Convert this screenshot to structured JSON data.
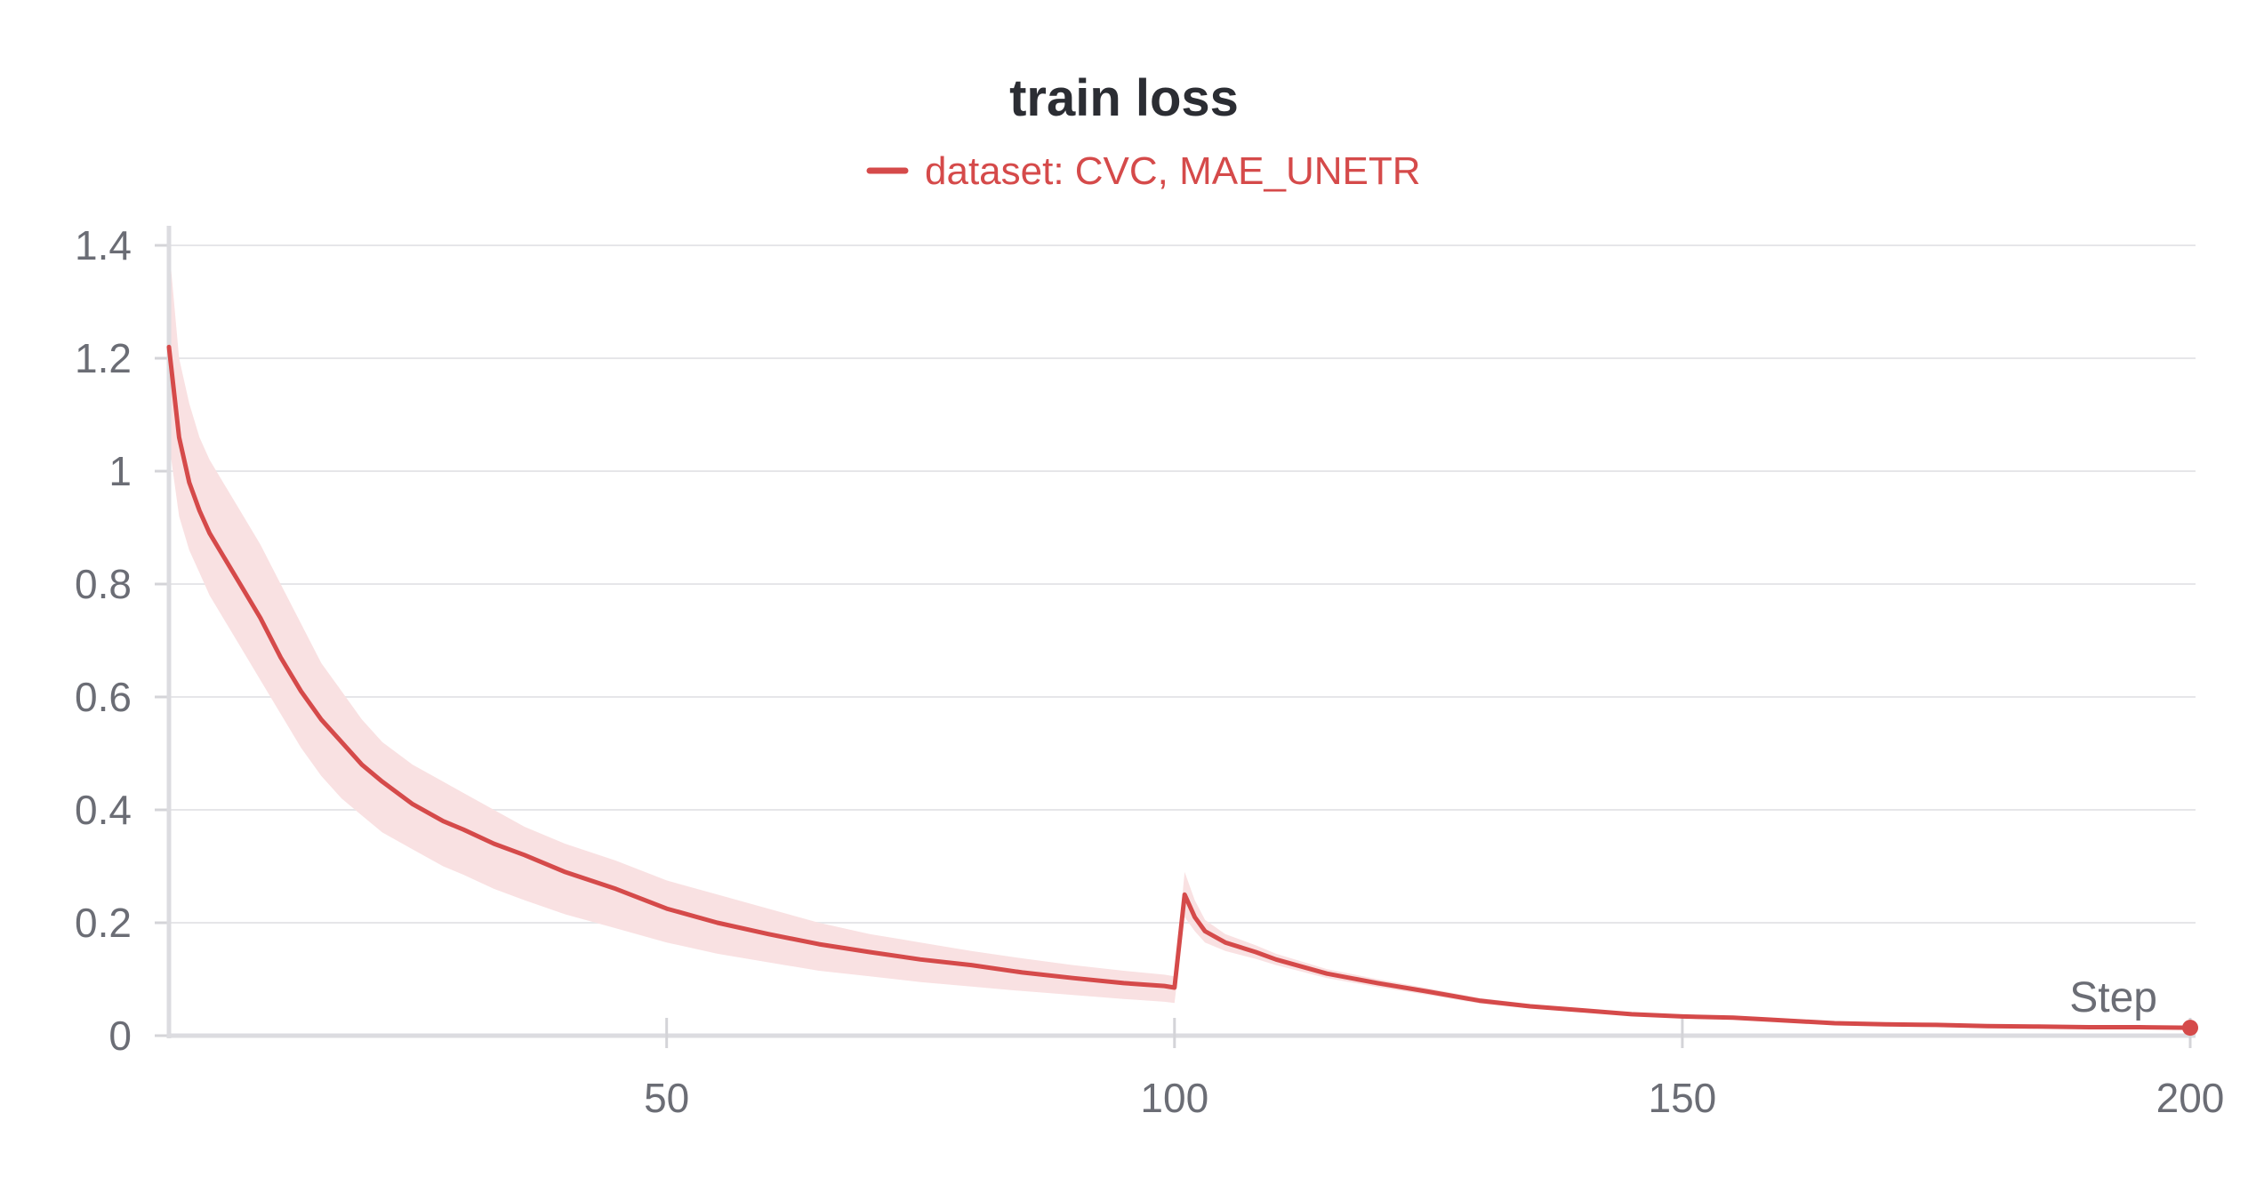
{
  "chart_data": {
    "type": "line",
    "title": "train loss",
    "xlabel": "Step",
    "ylabel": "",
    "xlim": [
      1,
      200
    ],
    "ylim": [
      0,
      1.4
    ],
    "x_ticks": [
      50,
      100,
      150,
      200
    ],
    "x_tick_labels": [
      "50",
      "100",
      "150",
      "200"
    ],
    "y_ticks": [
      0,
      0.2,
      0.4,
      0.6,
      0.8,
      1,
      1.2,
      1.4
    ],
    "y_tick_labels": [
      "0",
      "0.2",
      "0.4",
      "0.6",
      "0.8",
      "1",
      "1.2",
      "1.4"
    ],
    "grid": true,
    "legend_position": "top-center",
    "series": [
      {
        "name": "dataset: CVC, MAE_UNETR",
        "color": "#d54a4a",
        "band_color": "#f9e1e2",
        "x": [
          1,
          2,
          3,
          4,
          5,
          6,
          8,
          10,
          12,
          14,
          16,
          18,
          20,
          22,
          25,
          28,
          30,
          33,
          36,
          40,
          45,
          50,
          55,
          60,
          65,
          70,
          75,
          80,
          85,
          90,
          95,
          99,
          100,
          101,
          102,
          103,
          105,
          108,
          110,
          115,
          120,
          125,
          130,
          135,
          140,
          145,
          150,
          155,
          160,
          165,
          170,
          175,
          180,
          185,
          190,
          195,
          200
        ],
        "y": [
          1.22,
          1.06,
          0.98,
          0.93,
          0.89,
          0.86,
          0.8,
          0.74,
          0.67,
          0.61,
          0.56,
          0.52,
          0.48,
          0.45,
          0.41,
          0.38,
          0.365,
          0.34,
          0.32,
          0.29,
          0.26,
          0.225,
          0.2,
          0.18,
          0.162,
          0.148,
          0.135,
          0.125,
          0.112,
          0.102,
          0.093,
          0.088,
          0.085,
          0.25,
          0.21,
          0.185,
          0.165,
          0.148,
          0.135,
          0.11,
          0.093,
          0.078,
          0.062,
          0.052,
          0.045,
          0.038,
          0.034,
          0.032,
          0.027,
          0.022,
          0.02,
          0.019,
          0.017,
          0.016,
          0.015,
          0.015,
          0.014
        ],
        "band_upper": [
          1.4,
          1.2,
          1.12,
          1.06,
          1.02,
          0.99,
          0.93,
          0.87,
          0.8,
          0.73,
          0.66,
          0.61,
          0.56,
          0.52,
          0.48,
          0.45,
          0.43,
          0.4,
          0.37,
          0.34,
          0.31,
          0.275,
          0.25,
          0.225,
          0.2,
          0.18,
          0.165,
          0.15,
          0.137,
          0.125,
          0.115,
          0.108,
          0.105,
          0.29,
          0.24,
          0.205,
          0.18,
          0.16,
          0.145,
          0.118,
          0.1,
          0.084,
          0.067,
          0.056,
          0.048,
          0.041,
          0.036,
          0.034,
          0.029,
          0.024,
          0.022,
          0.021,
          0.019,
          0.018,
          0.017,
          0.017,
          0.016
        ],
        "band_lower": [
          1.05,
          0.92,
          0.86,
          0.82,
          0.78,
          0.75,
          0.69,
          0.63,
          0.57,
          0.51,
          0.46,
          0.42,
          0.39,
          0.36,
          0.33,
          0.3,
          0.285,
          0.26,
          0.24,
          0.215,
          0.19,
          0.165,
          0.145,
          0.13,
          0.115,
          0.105,
          0.095,
          0.087,
          0.079,
          0.072,
          0.065,
          0.06,
          0.058,
          0.21,
          0.185,
          0.165,
          0.15,
          0.136,
          0.125,
          0.102,
          0.086,
          0.072,
          0.057,
          0.048,
          0.042,
          0.035,
          0.032,
          0.03,
          0.025,
          0.02,
          0.018,
          0.017,
          0.015,
          0.014,
          0.013,
          0.013,
          0.012
        ]
      }
    ]
  }
}
